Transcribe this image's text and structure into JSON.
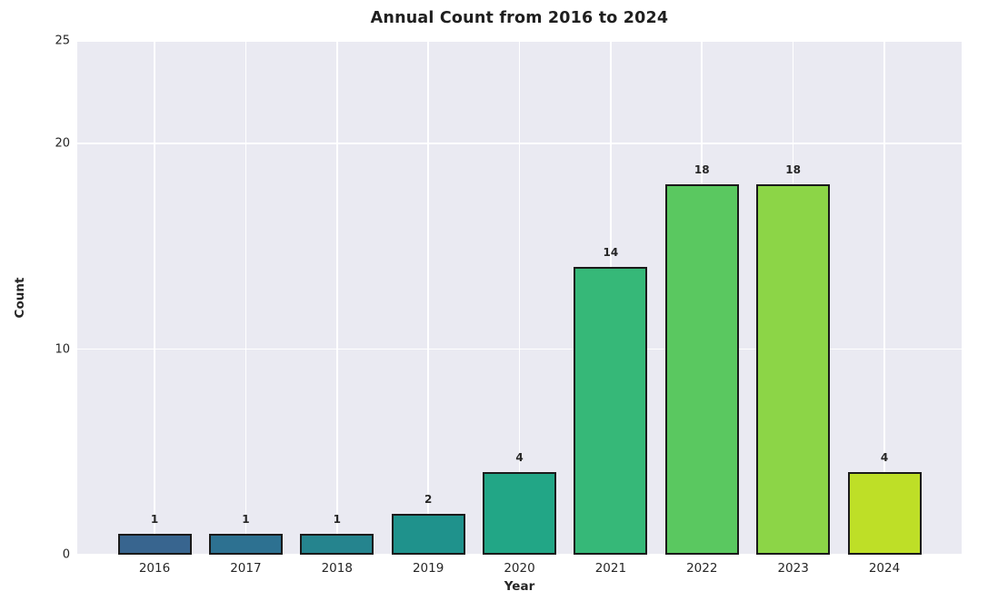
{
  "chart_data": {
    "type": "bar",
    "title": "Annual Count from 2016 to 2024",
    "xlabel": "Year",
    "ylabel": "Count",
    "categories": [
      "2016",
      "2017",
      "2018",
      "2019",
      "2020",
      "2021",
      "2022",
      "2023",
      "2024"
    ],
    "values": [
      1,
      1,
      1,
      2,
      4,
      14,
      18,
      18,
      4
    ],
    "bar_labels": [
      "1",
      "1",
      "1",
      "2",
      "4",
      "14",
      "18",
      "18",
      "4"
    ],
    "bar_colors": [
      "#38658f",
      "#2d7191",
      "#25848e",
      "#1f928c",
      "#22a686",
      "#36b878",
      "#5ac860",
      "#8cd547",
      "#bedf27"
    ],
    "bar_edge_color": "#1a1a1a",
    "ylim": [
      0,
      25
    ],
    "yticks": [
      0,
      10,
      20,
      25
    ],
    "grid": true,
    "grid_color": "#ffffff",
    "plot_bg": "#eaeaf2",
    "legend": "none",
    "text_color": "#262626"
  }
}
